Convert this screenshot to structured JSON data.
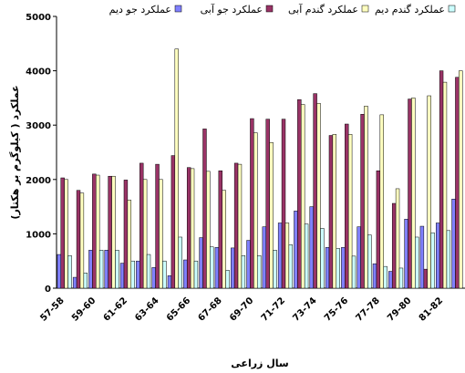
{
  "chart_data": {
    "type": "bar",
    "y_label": "عملکرد ( کیلوگرم بر هکتار)",
    "x_label": "سال زراعی",
    "categories": [
      "57-58",
      null,
      "59-60",
      null,
      "61-62",
      null,
      "63-64",
      null,
      "65-66",
      null,
      "67-68",
      null,
      "69-70",
      null,
      "71-72",
      null,
      "73-74",
      null,
      "75-76",
      null,
      "77-78",
      null,
      "79-80",
      null,
      "81-82",
      null
    ],
    "series": [
      {
        "name": "عملکرد جو دیم",
        "color": "#8080ff",
        "values": [
          620,
          200,
          700,
          700,
          460,
          500,
          380,
          230,
          520,
          930,
          750,
          740,
          880,
          1130,
          1200,
          1420,
          1500,
          750,
          750,
          1130,
          450,
          310,
          1270,
          1140,
          1200,
          1640
        ]
      },
      {
        "name": "عملکرد جو آبی",
        "color": "#993366",
        "values": [
          2030,
          1800,
          2100,
          2060,
          1990,
          2300,
          2280,
          2440,
          2220,
          2930,
          2160,
          2300,
          3120,
          3110,
          3110,
          3470,
          3580,
          2810,
          3020,
          3200,
          2160,
          1560,
          3480,
          350,
          4000,
          3880
        ]
      },
      {
        "name": "عملکرد گندم آبی",
        "color": "#ffffc0",
        "values": [
          2000,
          1750,
          2080,
          2060,
          1620,
          2000,
          2000,
          4400,
          2200,
          2150,
          1800,
          2280,
          2860,
          2680,
          1200,
          3380,
          3400,
          2830,
          2830,
          3350,
          3190,
          1830,
          3500,
          3540,
          3790,
          4000
        ]
      },
      {
        "name": "عملکرد گندم دیم",
        "color": "#ccffff",
        "values": [
          600,
          280,
          700,
          700,
          500,
          620,
          500,
          940,
          500,
          760,
          330,
          600,
          600,
          700,
          800,
          1180,
          1100,
          730,
          590,
          980,
          400,
          370,
          940,
          1020,
          1060,
          null
        ]
      }
    ],
    "ylim": [
      0,
      5000
    ],
    "yticks": [
      0,
      1000,
      2000,
      3000,
      4000,
      5000
    ],
    "grid": false
  }
}
